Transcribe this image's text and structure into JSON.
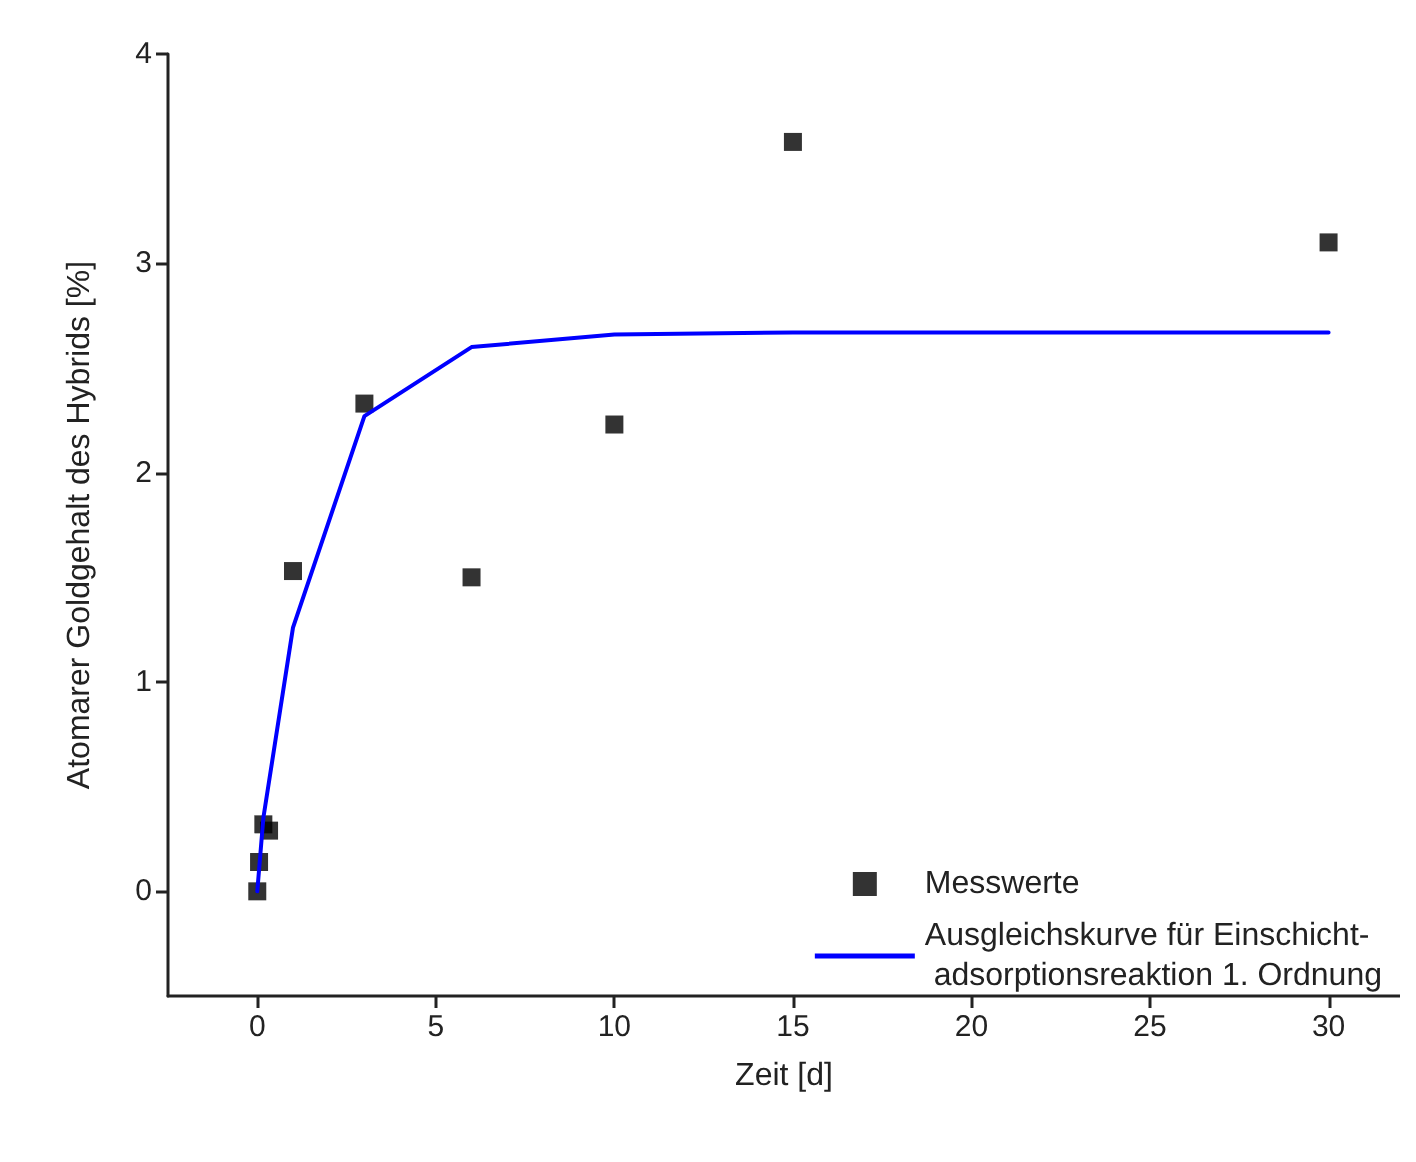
{
  "chart_data": {
    "type": "scatter",
    "xlabel": "Zeit [d]",
    "ylabel": "Atomarer Goldgehalt des Hybrids [%]",
    "xlim": [
      -2.5,
      32
    ],
    "xticks": [
      0,
      5,
      10,
      15,
      20,
      25,
      30
    ],
    "ylim": [
      -0.5,
      4
    ],
    "yticks": [
      0,
      1,
      2,
      3,
      4
    ],
    "grid": false,
    "legend": "bottom right",
    "marker": "square",
    "series": [
      {
        "name": "Messwerte",
        "color": "#000000",
        "x": [
          0,
          0.05,
          0.17,
          0.33,
          1,
          3,
          6,
          10,
          15,
          30
        ],
        "values": [
          0,
          0.14,
          0.32,
          0.29,
          1.53,
          2.33,
          1.5,
          2.23,
          3.58,
          3.1
        ]
      },
      {
        "name": "Ausgleichskurve für Einschicht-\n adsorptionsreaktion 1. Ordnung",
        "type": "line",
        "color": "#0000ff",
        "line_style": "solid",
        "marker": "none",
        "x": [
          0,
          0.17,
          1,
          3,
          6,
          10,
          15,
          30
        ],
        "values": [
          0,
          0.35,
          1.26,
          2.27,
          2.6,
          2.66,
          2.67,
          2.67
        ]
      }
    ]
  }
}
